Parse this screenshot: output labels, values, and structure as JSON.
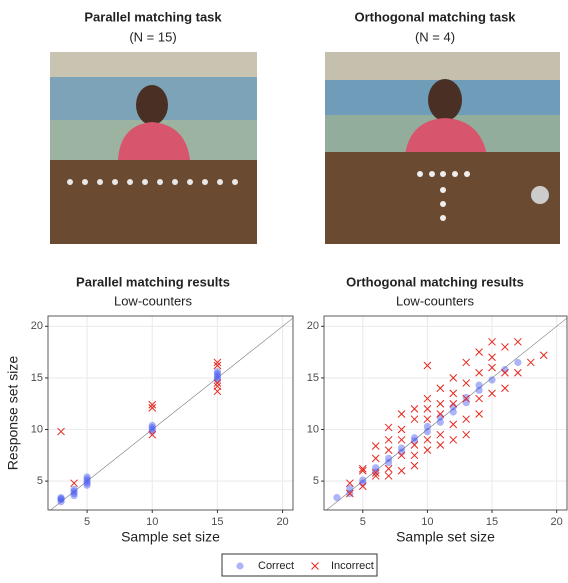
{
  "photos": [
    {
      "title": "Parallel matching task",
      "subtitle": "(N = 15)"
    },
    {
      "title": "Orthogonal matching task",
      "subtitle": "(N = 4)"
    }
  ],
  "chart_data": [
    {
      "type": "scatter",
      "title": "Parallel matching results",
      "subtitle": "Low-counters",
      "x_label": "Sample set size",
      "y_label": "Response set size",
      "xlim": [
        2,
        20.8
      ],
      "ylim": [
        2.2,
        21
      ],
      "xticks": [
        5,
        10,
        15,
        20
      ],
      "yticks": [
        5,
        10,
        15,
        20
      ],
      "grid": true,
      "identity_line": true,
      "legend": "bottom",
      "series": [
        {
          "name": "Correct",
          "color": "#4a5cf0",
          "marker": "circle",
          "x": [
            3,
            3,
            3,
            3,
            4,
            4,
            4,
            4,
            5,
            5,
            5,
            5,
            5,
            10,
            10,
            10,
            10,
            15,
            15,
            15,
            15,
            15
          ],
          "values": [
            3.0,
            3.2,
            3.3,
            3.4,
            3.6,
            3.8,
            4.0,
            4.2,
            4.6,
            4.8,
            5.0,
            5.2,
            5.4,
            9.8,
            10.0,
            10.2,
            10.4,
            14.8,
            15.0,
            15.2,
            15.4,
            15.6
          ]
        },
        {
          "name": "Incorrect",
          "color": "#e8261e",
          "marker": "cross",
          "x": [
            3,
            4,
            10,
            10,
            10,
            15,
            15,
            15,
            15,
            15
          ],
          "values": [
            9.8,
            4.8,
            12.4,
            12.1,
            9.5,
            16.5,
            16.2,
            14.5,
            14.2,
            13.7
          ]
        }
      ]
    },
    {
      "type": "scatter",
      "title": "Orthogonal matching results",
      "subtitle": "Low-counters",
      "x_label": "Sample set size",
      "xlim": [
        2,
        20.8
      ],
      "ylim": [
        2.2,
        21
      ],
      "xticks": [
        5,
        10,
        15,
        20
      ],
      "yticks": [
        5,
        10,
        15,
        20
      ],
      "grid": true,
      "identity_line": true,
      "series": [
        {
          "name": "Correct",
          "color": "#4a5cf0",
          "marker": "circle",
          "x": [
            3,
            4,
            4,
            5,
            5,
            6,
            6,
            7,
            7,
            8,
            8,
            9,
            9,
            10,
            10,
            11,
            11,
            12,
            12,
            13,
            13,
            14,
            14,
            15,
            16,
            17
          ],
          "values": [
            3.4,
            3.8,
            4.3,
            4.8,
            5.1,
            5.9,
            6.3,
            6.8,
            7.2,
            7.8,
            8.2,
            8.9,
            9.2,
            9.8,
            10.3,
            10.7,
            11.2,
            11.7,
            12.2,
            12.6,
            13.1,
            13.8,
            14.3,
            14.8,
            15.8,
            16.5
          ]
        },
        {
          "name": "Incorrect",
          "color": "#e8261e",
          "marker": "cross",
          "x": [
            4,
            4,
            5,
            5,
            5,
            6,
            6,
            6,
            6,
            7,
            7,
            7,
            7,
            7,
            8,
            8,
            8,
            8,
            8,
            9,
            9,
            9,
            9,
            9,
            10,
            10,
            10,
            10,
            10,
            10,
            11,
            11,
            11,
            11,
            11,
            12,
            12,
            12,
            12,
            12,
            13,
            13,
            13,
            13,
            13,
            14,
            14,
            14,
            14,
            15,
            15,
            15,
            15,
            16,
            16,
            16,
            17,
            17,
            18,
            19
          ],
          "values": [
            4.8,
            3.8,
            6.2,
            6.0,
            4.5,
            8.4,
            7.2,
            5.8,
            5.5,
            10.2,
            9.0,
            8.0,
            6.2,
            5.5,
            11.5,
            10.0,
            9.0,
            7.5,
            6.0,
            12.0,
            11.0,
            8.5,
            7.5,
            6.5,
            16.2,
            13.0,
            12.0,
            11.0,
            9.0,
            8.0,
            14.0,
            12.5,
            11.5,
            9.5,
            8.5,
            15.0,
            13.5,
            12.5,
            10.5,
            9.0,
            16.5,
            14.5,
            13.0,
            11.0,
            9.5,
            17.5,
            15.5,
            13.0,
            11.5,
            18.5,
            17.0,
            16.0,
            13.5,
            18.0,
            15.5,
            14.0,
            18.5,
            15.5,
            16.5,
            17.2
          ]
        }
      ]
    }
  ]
}
